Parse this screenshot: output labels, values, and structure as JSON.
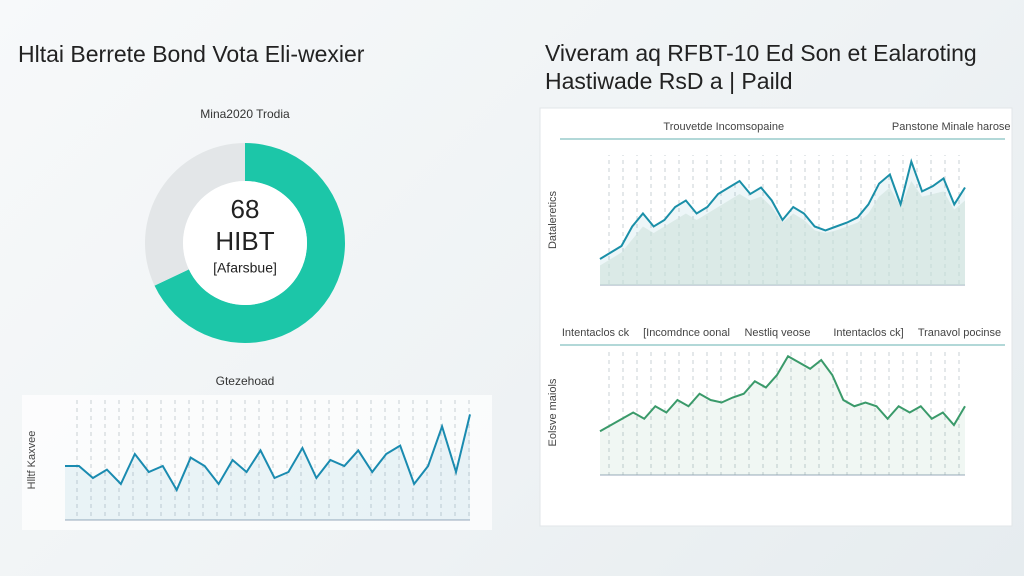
{
  "header": {
    "left_title": "Hltai Berrete Bond Vota Eli-wexier",
    "right_title": [
      "Viveram aq RFBT-10 Ed Son et Ealaroting",
      "Hastiwade RsD a | Paild"
    ]
  },
  "chart_data": [
    {
      "type": "pie",
      "title": "Mina2020 Trodia",
      "values": [
        68,
        32
      ],
      "colors": [
        "#1cc6a8",
        "#e3e6e8"
      ],
      "center_lines": [
        "HIBT",
        "[Afarsbue]"
      ]
    },
    {
      "type": "line",
      "title": "Gtezehoad",
      "ylabel": "Hlltf Kaxvee",
      "ylim": [
        0,
        100
      ],
      "series": [
        {
          "name": "Gtezehoad",
          "color": "#1a8bb0",
          "values": [
            45,
            45,
            35,
            42,
            30,
            55,
            40,
            45,
            25,
            52,
            45,
            30,
            50,
            40,
            58,
            35,
            40,
            60,
            35,
            50,
            45,
            58,
            40,
            55,
            62,
            30,
            45,
            78,
            40,
            88
          ]
        }
      ]
    },
    {
      "type": "line",
      "ylabel": "Dataleretics",
      "ylim": [
        0,
        100
      ],
      "series": [
        {
          "name": "Trouvetde Incomsopaine",
          "color": "#1a8fa8",
          "values": [
            20,
            25,
            30,
            45,
            55,
            45,
            50,
            60,
            65,
            55,
            60,
            70,
            75,
            80,
            70,
            75,
            65,
            50,
            60,
            55,
            45,
            42,
            45,
            48,
            52,
            62,
            78,
            85,
            62,
            95,
            72,
            76,
            82,
            62,
            75
          ]
        },
        {
          "name": "Panstone Minale harose",
          "color": "#cfe3dc",
          "area": true,
          "values": [
            15,
            20,
            25,
            35,
            45,
            40,
            45,
            50,
            55,
            50,
            55,
            60,
            65,
            70,
            65,
            68,
            60,
            48,
            55,
            50,
            42,
            40,
            42,
            45,
            48,
            55,
            68,
            75,
            60,
            80,
            68,
            70,
            72,
            58,
            65
          ]
        }
      ]
    },
    {
      "type": "line",
      "ylabel": "Eolsve maiols",
      "ylim": [
        0,
        100
      ],
      "annotations": [
        "[Incomdnce oonal",
        "Nestliq veose",
        "Intentaclos ck]",
        "Tranavol pocinse"
      ],
      "series": [
        {
          "name": "Intentaclos ck",
          "color": "#3a9a6a",
          "values": [
            35,
            40,
            45,
            50,
            45,
            55,
            50,
            60,
            55,
            65,
            60,
            58,
            62,
            65,
            75,
            70,
            80,
            95,
            90,
            85,
            92,
            80,
            60,
            55,
            58,
            55,
            45,
            55,
            50,
            55,
            45,
            50,
            40,
            55
          ]
        }
      ]
    }
  ]
}
